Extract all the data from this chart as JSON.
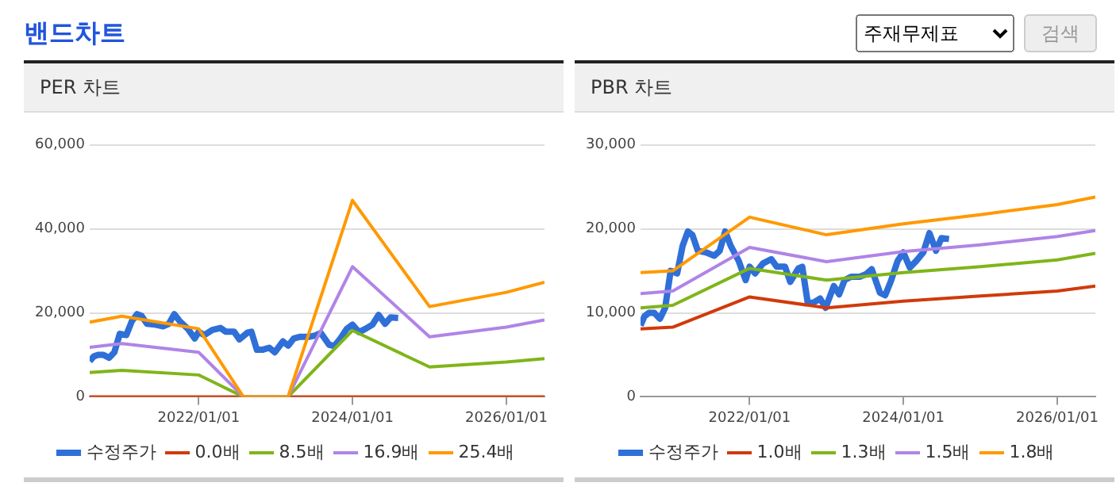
{
  "chart_data": [
    {
      "type": "other",
      "title": "밴드차트",
      "annotations": [
        "주재무제표",
        "검색"
      ]
    },
    {
      "type": "line",
      "title": "PER 차트",
      "marker": "none",
      "grid": "y",
      "legend": "bottom",
      "xlim": [
        "2020-08-01",
        "2026-07-01"
      ],
      "xticks": [
        {
          "value": "2022-01-01",
          "label": "2022/01/01"
        },
        {
          "value": "2024-01-01",
          "label": "2024/01/01"
        },
        {
          "value": "2026-01-01",
          "label": "2026/01/01"
        }
      ],
      "ylim": [
        0,
        60000
      ],
      "yticks": [
        {
          "value": 0,
          "label": "0"
        },
        {
          "value": 20000,
          "label": "20,000"
        },
        {
          "value": 40000,
          "label": "40,000"
        },
        {
          "value": 60000,
          "label": "60,000"
        }
      ],
      "series": [
        {
          "name": "수정주가",
          "color": "#2f6fd8",
          "x": [
            "2020-08-01",
            "2020-08-20",
            "2020-09-10",
            "2020-10-05",
            "2020-11-01",
            "2020-11-26",
            "2020-12-22",
            "2021-01-22",
            "2021-02-17",
            "2021-03-14",
            "2021-04-04",
            "2021-04-30",
            "2021-06-08",
            "2021-07-17",
            "2021-08-12",
            "2021-09-07",
            "2021-10-03",
            "2021-11-10",
            "2021-12-13",
            "2022-01-01",
            "2022-01-27",
            "2022-03-06",
            "2022-04-14",
            "2022-05-10",
            "2022-06-18",
            "2022-07-13",
            "2022-08-21",
            "2022-09-08",
            "2022-10-04",
            "2022-10-30",
            "2022-12-02",
            "2022-12-28",
            "2023-02-05",
            "2023-03-02",
            "2023-03-28",
            "2023-04-28",
            "2023-06-08",
            "2023-07-08",
            "2023-08-04",
            "2023-09-12",
            "2023-10-07",
            "2023-11-02",
            "2023-12-05",
            "2024-01-01",
            "2024-02-01",
            "2024-03-03",
            "2024-04-05",
            "2024-05-04",
            "2024-06-04",
            "2024-06-30",
            "2024-08-05"
          ],
          "values": [
            8500,
            9600,
            10000,
            10000,
            9300,
            10600,
            15000,
            14700,
            18000,
            19700,
            19300,
            17400,
            17200,
            16800,
            17400,
            19700,
            18000,
            16200,
            13900,
            15500,
            14700,
            15900,
            16400,
            15500,
            15500,
            13700,
            15300,
            15500,
            11200,
            11200,
            11700,
            10600,
            13200,
            12200,
            13900,
            14300,
            14300,
            14600,
            15200,
            12400,
            12100,
            13700,
            16200,
            17200,
            15400,
            16200,
            17200,
            19500,
            17400,
            18900,
            18800
          ]
        },
        {
          "name": "0.0배",
          "color": "#d13a0a",
          "x": [
            "2020-08-01",
            "2021-01-01",
            "2022-01-01",
            "2022-08-01",
            "2023-03-01",
            "2024-01-01",
            "2025-01-01",
            "2026-01-01",
            "2026-07-01"
          ],
          "values": [
            0,
            0,
            0,
            0,
            0,
            0,
            0,
            0,
            0
          ]
        },
        {
          "name": "8.5배",
          "color": "#7fb519",
          "x": [
            "2020-08-01",
            "2021-01-01",
            "2022-01-01",
            "2022-08-01",
            "2023-03-01",
            "2024-01-01",
            "2025-01-01",
            "2026-01-01",
            "2026-07-01"
          ],
          "values": [
            5800,
            6300,
            5200,
            0,
            0,
            15800,
            7100,
            8300,
            9100
          ]
        },
        {
          "name": "16.9배",
          "color": "#b084e6",
          "x": [
            "2020-08-01",
            "2021-01-01",
            "2022-01-01",
            "2022-08-01",
            "2023-03-01",
            "2024-01-01",
            "2025-01-01",
            "2026-01-01",
            "2026-07-01"
          ],
          "values": [
            11800,
            12700,
            10600,
            0,
            0,
            31000,
            14300,
            16600,
            18300
          ]
        },
        {
          "name": "25.4배",
          "color": "#ff9900",
          "x": [
            "2020-08-01",
            "2021-01-01",
            "2022-01-01",
            "2022-08-01",
            "2023-03-01",
            "2024-01-01",
            "2025-01-01",
            "2026-01-01",
            "2026-07-01"
          ],
          "values": [
            17800,
            19200,
            16200,
            0,
            0,
            46800,
            21500,
            24900,
            27300
          ]
        }
      ]
    },
    {
      "type": "line",
      "title": "PBR 차트",
      "marker": "none",
      "grid": "y",
      "legend": "bottom",
      "xlim": [
        "2020-08-01",
        "2026-07-01"
      ],
      "xticks": [
        {
          "value": "2022-01-01",
          "label": "2022/01/01"
        },
        {
          "value": "2024-01-01",
          "label": "2024/01/01"
        },
        {
          "value": "2026-01-01",
          "label": "2026/01/01"
        }
      ],
      "ylim": [
        0,
        30000
      ],
      "yticks": [
        {
          "value": 0,
          "label": "0"
        },
        {
          "value": 10000,
          "label": "10,000"
        },
        {
          "value": 20000,
          "label": "20,000"
        },
        {
          "value": 30000,
          "label": "30,000"
        }
      ],
      "series": [
        {
          "name": "수정주가",
          "color": "#2f6fd8",
          "x": [
            "2020-08-01",
            "2020-08-20",
            "2020-09-10",
            "2020-10-05",
            "2020-11-01",
            "2020-11-26",
            "2020-12-22",
            "2021-01-22",
            "2021-02-17",
            "2021-03-14",
            "2021-04-04",
            "2021-04-30",
            "2021-06-08",
            "2021-07-17",
            "2021-08-12",
            "2021-09-07",
            "2021-10-03",
            "2021-11-10",
            "2021-12-13",
            "2022-01-01",
            "2022-01-27",
            "2022-03-06",
            "2022-04-14",
            "2022-05-10",
            "2022-06-18",
            "2022-07-13",
            "2022-08-21",
            "2022-09-08",
            "2022-10-04",
            "2022-10-30",
            "2022-12-02",
            "2022-12-28",
            "2023-02-05",
            "2023-03-02",
            "2023-03-28",
            "2023-04-28",
            "2023-06-08",
            "2023-07-08",
            "2023-08-04",
            "2023-09-12",
            "2023-10-07",
            "2023-11-02",
            "2023-12-05",
            "2024-01-01",
            "2024-02-01",
            "2024-03-03",
            "2024-04-05",
            "2024-05-04",
            "2024-06-04",
            "2024-06-30",
            "2024-08-05"
          ],
          "values": [
            8500,
            9600,
            10000,
            10000,
            9300,
            10600,
            15000,
            14700,
            18000,
            19700,
            19300,
            17400,
            17200,
            16800,
            17400,
            19700,
            18000,
            16200,
            13900,
            15500,
            14700,
            15900,
            16400,
            15500,
            15500,
            13700,
            15300,
            15500,
            11200,
            11200,
            11700,
            10600,
            13200,
            12200,
            13900,
            14300,
            14300,
            14600,
            15200,
            12400,
            12100,
            13700,
            16200,
            17200,
            15400,
            16200,
            17200,
            19500,
            17400,
            18900,
            18800
          ]
        },
        {
          "name": "1.0배",
          "color": "#d13a0a",
          "x": [
            "2020-08-01",
            "2021-01-01",
            "2022-01-01",
            "2023-01-01",
            "2024-01-01",
            "2025-01-01",
            "2026-01-01",
            "2026-07-01"
          ],
          "values": [
            8100,
            8300,
            11900,
            10600,
            11400,
            12000,
            12600,
            13200
          ]
        },
        {
          "name": "1.3배",
          "color": "#7fb519",
          "x": [
            "2020-08-01",
            "2021-01-01",
            "2022-01-01",
            "2023-01-01",
            "2024-01-01",
            "2025-01-01",
            "2026-01-01",
            "2026-07-01"
          ],
          "values": [
            10600,
            10900,
            15300,
            13900,
            14800,
            15500,
            16300,
            17100
          ]
        },
        {
          "name": "1.5배",
          "color": "#b084e6",
          "x": [
            "2020-08-01",
            "2021-01-01",
            "2022-01-01",
            "2023-01-01",
            "2024-01-01",
            "2025-01-01",
            "2026-01-01",
            "2026-07-01"
          ],
          "values": [
            12300,
            12600,
            17800,
            16100,
            17300,
            18100,
            19100,
            19800
          ]
        },
        {
          "name": "1.8배",
          "color": "#ff9900",
          "x": [
            "2020-08-01",
            "2021-01-01",
            "2022-01-01",
            "2023-01-01",
            "2024-01-01",
            "2025-01-01",
            "2026-01-01",
            "2026-07-01"
          ],
          "values": [
            14800,
            15000,
            21400,
            19300,
            20600,
            21700,
            22900,
            23800
          ]
        }
      ]
    }
  ]
}
